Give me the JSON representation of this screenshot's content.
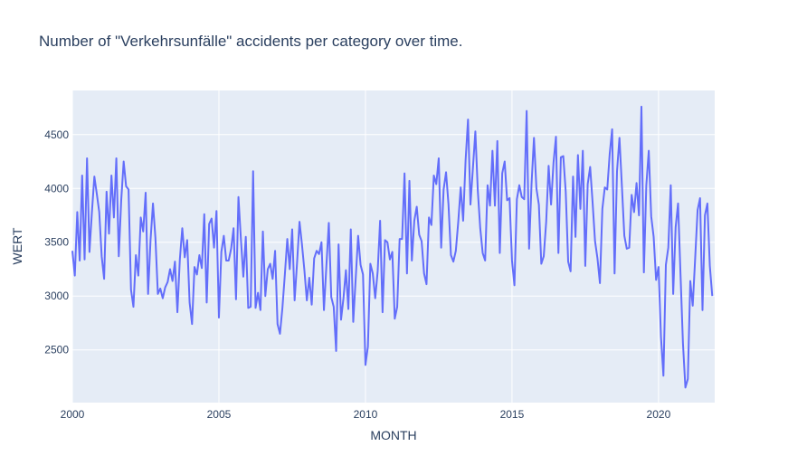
{
  "chart_data": {
    "type": "line",
    "title": "Number of \"Verkehrsunfälle\" accidents per category over time.",
    "xlabel": "MONTH",
    "ylabel": "WERT",
    "x_start": "2000-01",
    "x_step": "month",
    "xlim": [
      2000.0,
      2021.917
    ],
    "ylim": [
      2010,
      4910
    ],
    "x_ticks": [
      "2000",
      "2005",
      "2010",
      "2015",
      "2020"
    ],
    "y_ticks": [
      "2500",
      "3000",
      "3500",
      "4000",
      "4500"
    ],
    "grid": true,
    "colors": {
      "line": "#636efa",
      "plot_bg": "#e5ecf6",
      "grid": "#ffffff",
      "text": "#2a3f5f"
    },
    "series": [
      {
        "values": [
          3420,
          3190,
          3780,
          3330,
          4120,
          3340,
          4280,
          3410,
          3780,
          4110,
          3950,
          3780,
          3370,
          3160,
          3970,
          3580,
          4120,
          3730,
          4280,
          3370,
          3890,
          4250,
          4020,
          3990,
          3060,
          2900,
          3380,
          3190,
          3730,
          3600,
          3960,
          3020,
          3520,
          3860,
          3540,
          3020,
          3070,
          2980,
          3080,
          3130,
          3250,
          3140,
          3320,
          2850,
          3340,
          3630,
          3360,
          3520,
          2940,
          2740,
          3270,
          3200,
          3380,
          3260,
          3760,
          2940,
          3670,
          3720,
          3450,
          3790,
          2800,
          3410,
          3560,
          3330,
          3330,
          3440,
          3630,
          2970,
          3920,
          3530,
          3180,
          3550,
          2890,
          2900,
          4160,
          2890,
          3030,
          2870,
          3600,
          3000,
          3250,
          3300,
          3160,
          3420,
          2740,
          2650,
          2890,
          3200,
          3530,
          3250,
          3620,
          2960,
          3310,
          3690,
          3480,
          3240,
          2960,
          3170,
          2920,
          3350,
          3420,
          3390,
          3500,
          2870,
          3280,
          3680,
          2990,
          2900,
          2490,
          3480,
          2780,
          2980,
          3240,
          2880,
          3620,
          2760,
          3160,
          3560,
          3290,
          3200,
          2360,
          2530,
          3300,
          3210,
          2980,
          3230,
          3700,
          2850,
          3520,
          3500,
          3340,
          3410,
          2790,
          2900,
          3530,
          3530,
          4140,
          3210,
          4070,
          3330,
          3700,
          3830,
          3570,
          3510,
          3210,
          3110,
          3730,
          3660,
          4120,
          4040,
          4280,
          3450,
          3990,
          4150,
          3850,
          3380,
          3320,
          3420,
          3690,
          4010,
          3700,
          4260,
          4640,
          3850,
          4190,
          4530,
          3980,
          3630,
          3400,
          3330,
          4030,
          3840,
          4350,
          3840,
          4440,
          3400,
          4140,
          4250,
          3890,
          3910,
          3330,
          3100,
          3900,
          4030,
          3920,
          3900,
          4720,
          3440,
          4040,
          4470,
          4000,
          3850,
          3300,
          3370,
          3690,
          4210,
          3850,
          4240,
          4480,
          3400,
          4290,
          4300,
          3970,
          3320,
          3230,
          4110,
          3550,
          4310,
          3810,
          4350,
          3280,
          4040,
          4200,
          3870,
          3510,
          3350,
          3120,
          3810,
          4010,
          3990,
          4320,
          4550,
          3210,
          4160,
          4470,
          4020,
          3560,
          3440,
          3450,
          3940,
          3780,
          4050,
          3750,
          4760,
          3220,
          4030,
          4350,
          3740,
          3550,
          3150,
          3270,
          2620,
          2260,
          3290,
          3450,
          4030,
          3020,
          3640,
          3860,
          3200,
          2560,
          2150,
          2230,
          3140,
          2910,
          3350,
          3800,
          3910,
          2870,
          3750,
          3860,
          3280,
          3000
        ]
      }
    ]
  }
}
